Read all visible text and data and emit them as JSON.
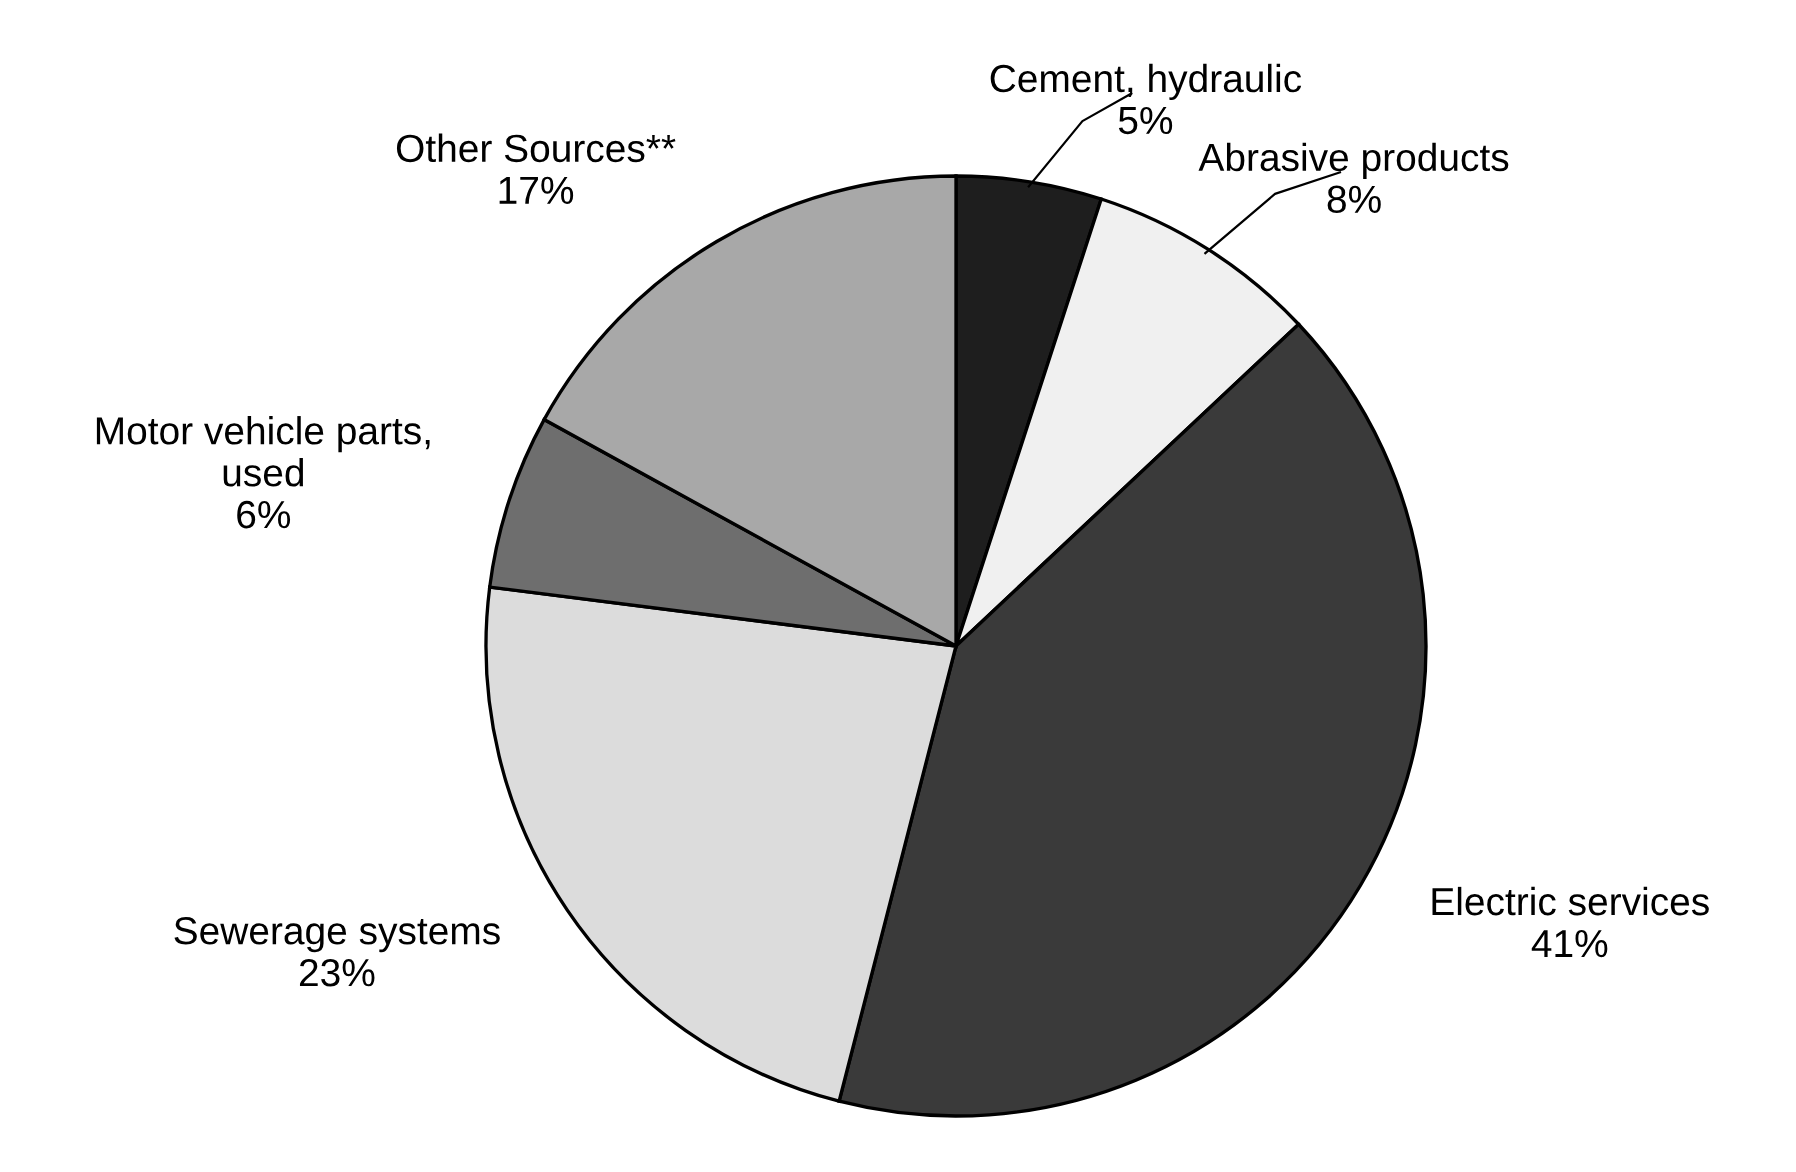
{
  "chart_data": {
    "type": "pie",
    "categories": [
      "Cement, hydraulic",
      "Abrasive products",
      "Electric services",
      "Sewerage systems",
      "Motor vehicle parts,\nused",
      "Other Sources**"
    ],
    "values": [
      5,
      8,
      41,
      23,
      6,
      17
    ],
    "value_labels": [
      "5%",
      "8%",
      "41%",
      "23%",
      "6%",
      "17%"
    ],
    "colors": [
      "#1e1e1e",
      "#f0f0f0",
      "#3a3a3a",
      "#dcdcdc",
      "#6e6e6e",
      "#a8a8a8"
    ]
  }
}
